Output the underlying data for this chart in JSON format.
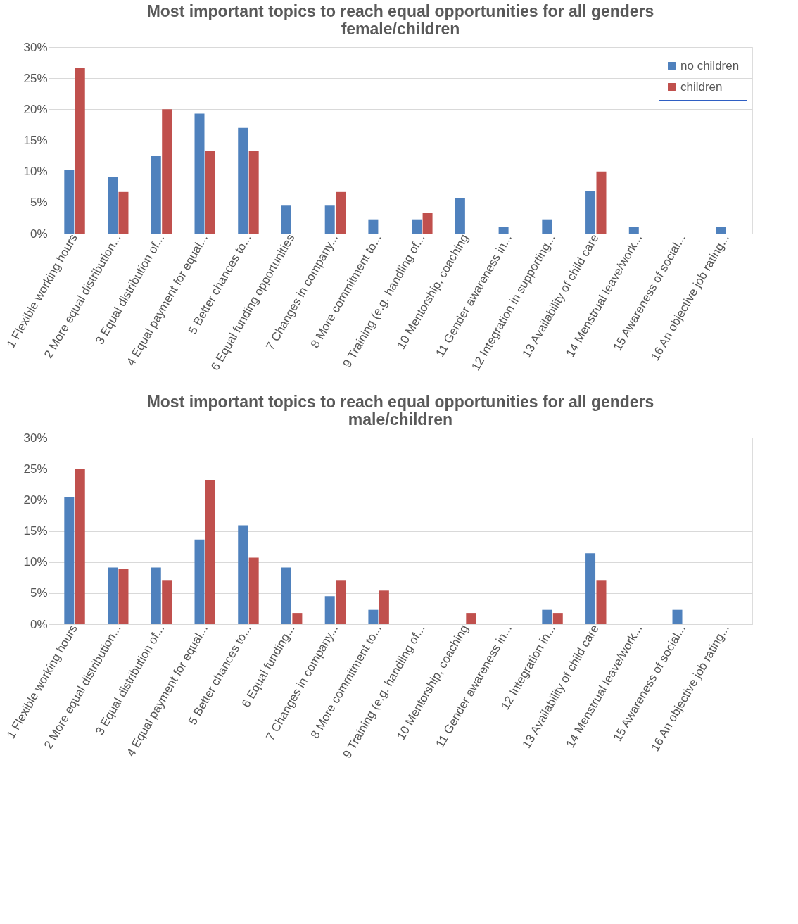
{
  "chart_data": [
    {
      "type": "bar",
      "title": "Most important topics to reach equal opportunities  for all genders\nfemale/children",
      "categories": [
        "1 Flexible working hours",
        "2 More equal distribution...",
        "3 Equal distribution of...",
        "4 Equal payment for equal...",
        "5 Better chances to...",
        "6 Equal funding opportunities",
        "7 Changes in company...",
        "8 More commitment to...",
        "9 Training (e.g. handling of...",
        "10 Mentorship, coaching",
        "11 Gender awareness in...",
        "12 Integration in supporting...",
        "13 Availability of child care",
        "14 Menstrual leave/work...",
        "15 Awareness of social...",
        "16 An objective job rating..."
      ],
      "series": [
        {
          "name": "no children",
          "color": "#4f81bd",
          "values": [
            10.3,
            9.1,
            12.5,
            19.3,
            17.0,
            4.5,
            4.5,
            2.3,
            2.3,
            5.7,
            1.1,
            2.3,
            6.8,
            1.1,
            0,
            1.1
          ]
        },
        {
          "name": "children",
          "color": "#c0504d",
          "values": [
            26.7,
            6.7,
            20.0,
            13.3,
            13.3,
            0,
            6.7,
            0,
            3.3,
            0,
            0,
            0,
            10.0,
            0,
            0,
            0
          ]
        }
      ],
      "ylim": [
        0,
        30
      ],
      "yticks": [
        {
          "value": 0,
          "label": "0%"
        },
        {
          "value": 5,
          "label": "5%"
        },
        {
          "value": 10,
          "label": "10%"
        },
        {
          "value": 15,
          "label": "15%"
        },
        {
          "value": 20,
          "label": "20%"
        },
        {
          "value": 25,
          "label": "25%"
        },
        {
          "value": 30,
          "label": "30%"
        }
      ],
      "grid": "y",
      "legend": "top right"
    },
    {
      "type": "bar",
      "title": "Most important topics to reach equal opportunities  for all genders\nmale/children",
      "categories": [
        "1 Flexible working hours",
        "2 More equal distribution...",
        "3 Equal distribution of...",
        "4 Equal payment for equal...",
        "5 Better chances to...",
        "6 Equal funding...",
        "7 Changes in company...",
        "8 More commitment to...",
        "9 Training (e.g. handling of...",
        "10 Mentorship, coaching",
        "11 Gender awareness in...",
        "12 Integration in...",
        "13 Availability of child care",
        "14 Menstrual leave/work...",
        "15 Awareness of social...",
        "16 An objective job rating..."
      ],
      "series": [
        {
          "name": "no children",
          "color": "#4f81bd",
          "values": [
            20.5,
            9.1,
            9.1,
            13.6,
            15.9,
            9.1,
            4.5,
            2.3,
            0,
            0,
            0,
            2.3,
            11.4,
            0,
            2.3,
            0
          ]
        },
        {
          "name": "children",
          "color": "#c0504d",
          "values": [
            25.0,
            8.9,
            7.1,
            23.2,
            10.7,
            1.8,
            7.1,
            5.4,
            0,
            1.8,
            0,
            1.8,
            7.1,
            0,
            0,
            0
          ]
        }
      ],
      "ylim": [
        0,
        30
      ],
      "yticks": [
        {
          "value": 0,
          "label": "0%"
        },
        {
          "value": 5,
          "label": "5%"
        },
        {
          "value": 10,
          "label": "10%"
        },
        {
          "value": 15,
          "label": "15%"
        },
        {
          "value": 20,
          "label": "20%"
        },
        {
          "value": 25,
          "label": "25%"
        },
        {
          "value": 30,
          "label": "30%"
        }
      ],
      "grid": "y",
      "legend": "top right"
    }
  ]
}
